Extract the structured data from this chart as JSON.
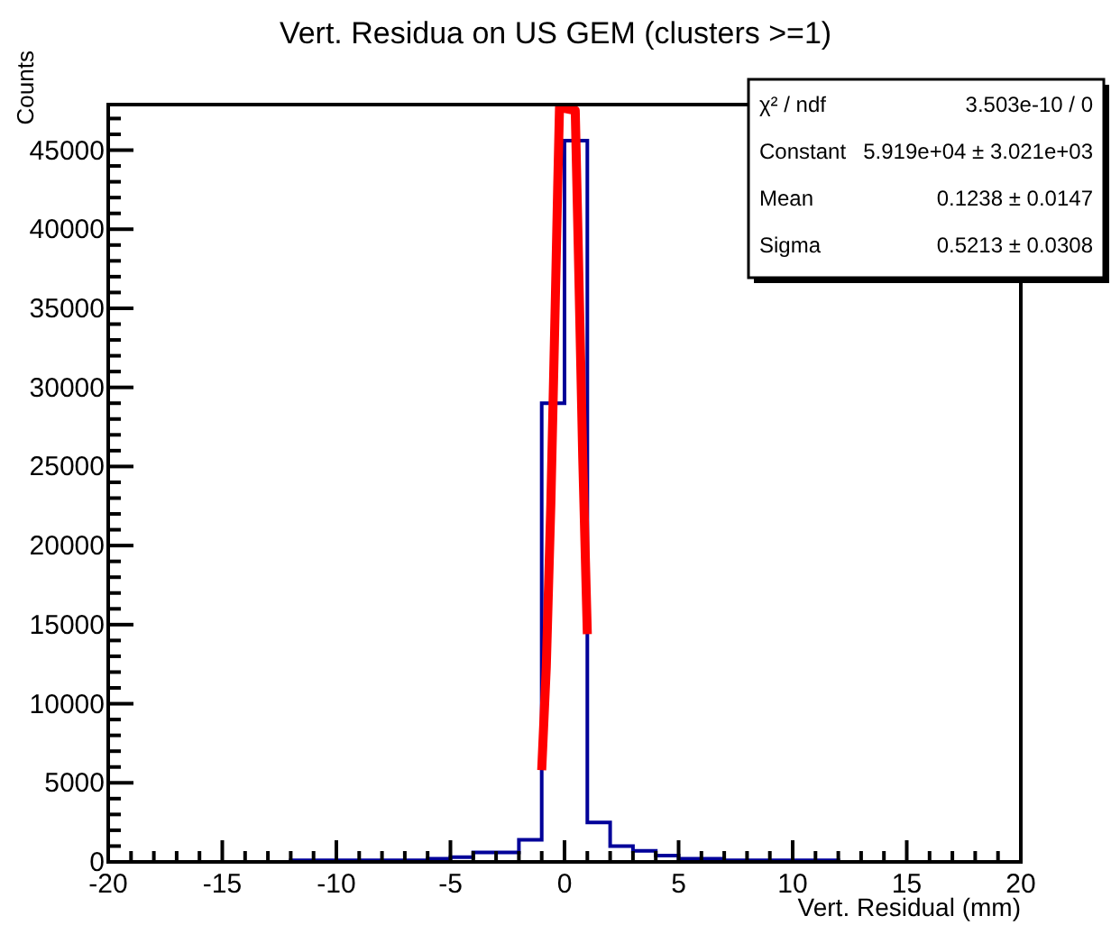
{
  "chart_data": {
    "type": "histogram",
    "title": "Vert. Residua on US GEM (clusters >=1)",
    "xlabel": "Vert. Residual (mm)",
    "ylabel": "Counts",
    "xlim": [
      -20,
      20
    ],
    "xticks": [
      -20,
      -15,
      -10,
      -5,
      0,
      5,
      10,
      15,
      20
    ],
    "ylim": [
      0,
      47880
    ],
    "yticks": [
      0,
      5000,
      10000,
      15000,
      20000,
      25000,
      30000,
      35000,
      40000,
      45000
    ],
    "grid": false,
    "annotations": [
      "χ² / ndf",
      "3.503e-10 / 0",
      "Constant",
      "5.919e+04 ± 3.021e+03",
      "Mean",
      "0.1238 ± 0.0147",
      "Sigma",
      "0.5213 ± 0.0308"
    ],
    "series": [
      {
        "type": "histogram",
        "color": "#000099",
        "bins": [
          -20,
          -19,
          -18,
          -17,
          -16,
          -15,
          -14,
          -13,
          -12,
          -11,
          -10,
          -9,
          -8,
          -7,
          -6,
          -5,
          -4,
          -3,
          -2,
          -1,
          0,
          1,
          2,
          3,
          4,
          5,
          6,
          7,
          8,
          9,
          10,
          11,
          12,
          13,
          14,
          15,
          16,
          17,
          18,
          19,
          20
        ],
        "values": [
          0,
          0,
          0,
          0,
          0,
          0,
          0,
          0,
          100,
          100,
          100,
          100,
          100,
          100,
          200,
          300,
          600,
          600,
          1400,
          29000,
          45600,
          2500,
          1000,
          700,
          400,
          200,
          200,
          100,
          100,
          100,
          100,
          100,
          0,
          0,
          0,
          0,
          0,
          0,
          0,
          0
        ]
      },
      {
        "type": "line",
        "color": "#ff0000",
        "x": [
          -1,
          -0.8,
          -0.6,
          -0.4,
          -0.3,
          -0.22,
          0.47,
          0.6,
          0.8,
          1
        ],
        "values": [
          5800,
          12300,
          22600,
          35700,
          42600,
          47700,
          47500,
          39000,
          25500,
          14400
        ]
      }
    ]
  }
}
